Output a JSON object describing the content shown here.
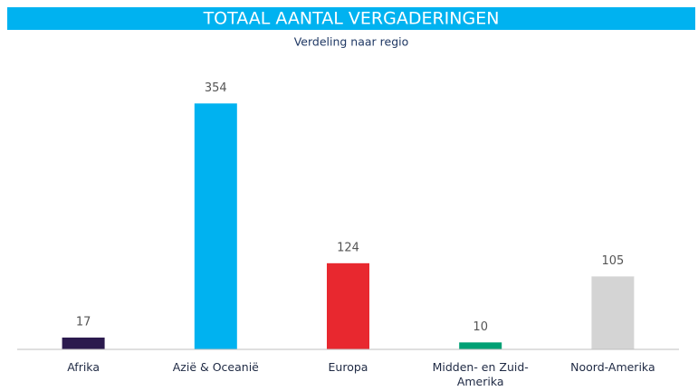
{
  "chart_data": {
    "type": "bar",
    "title": "TOTAAL AANTAL VERGADERINGEN",
    "subtitle": "Verdeling naar regio",
    "categories": [
      "Afrika",
      "Azië & Oceanië",
      "Europa",
      "Midden- en Zuid-Amerika",
      "Noord-Amerika"
    ],
    "values": [
      17,
      354,
      124,
      10,
      105
    ],
    "colors": [
      "#2b1a4e",
      "#00b2f0",
      "#e8282f",
      "#00a074",
      "#d4d4d4"
    ],
    "ylim": [
      0,
      400
    ]
  }
}
